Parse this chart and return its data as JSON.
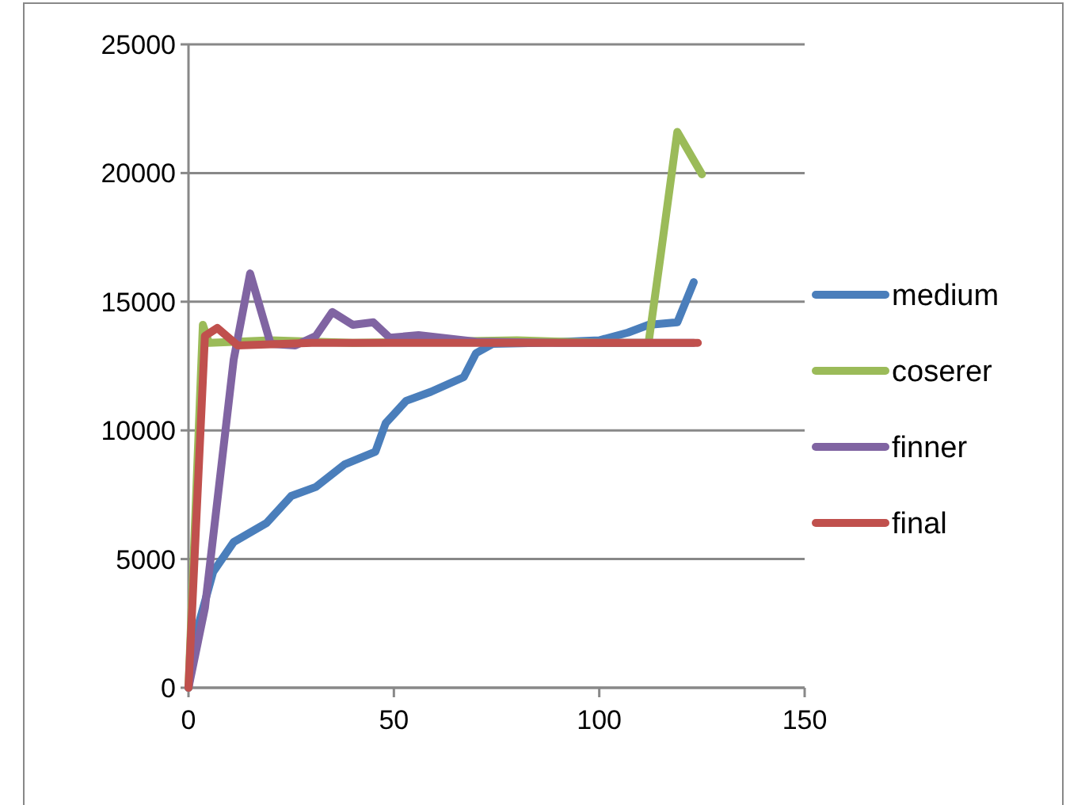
{
  "chart_data": {
    "type": "line",
    "xlim": [
      0,
      150
    ],
    "xticks": [
      0,
      50,
      100,
      150
    ],
    "ylim": [
      0,
      25000
    ],
    "yticks": [
      0,
      5000,
      10000,
      15000,
      20000,
      25000
    ],
    "grid": "y",
    "legend": "right",
    "marker": "none",
    "line_style": "solid",
    "series": [
      {
        "name": "medium",
        "color": "#4a7ebb",
        "x": [
          0,
          2,
          6,
          11,
          19,
          25,
          31,
          38,
          45.5,
          48,
          53,
          59,
          67,
          70,
          74,
          85,
          100,
          107,
          112,
          119,
          123
        ],
        "values": [
          0,
          2200,
          4500,
          5660,
          6400,
          7450,
          7800,
          8680,
          9170,
          10280,
          11150,
          11500,
          12070,
          13000,
          13360,
          13400,
          13500,
          13800,
          14100,
          14200,
          15760
        ]
      },
      {
        "name": "coserer",
        "color": "#9bbb59",
        "x": [
          0,
          3.5,
          5,
          20,
          40,
          60,
          80,
          100,
          112,
          115,
          119,
          125
        ],
        "values": [
          0,
          14100,
          13400,
          13500,
          13400,
          13450,
          13500,
          13400,
          13400,
          16870,
          21600,
          19950
        ]
      },
      {
        "name": "finner",
        "color": "#8064a2",
        "x": [
          0,
          4,
          11,
          15,
          20,
          26,
          31,
          35,
          40,
          45,
          49,
          56,
          70,
          90,
          110,
          123
        ],
        "values": [
          0,
          3100,
          12750,
          16100,
          13360,
          13300,
          13670,
          14600,
          14100,
          14200,
          13600,
          13700,
          13450,
          13400,
          13400,
          13400
        ]
      },
      {
        "name": "final",
        "color": "#c0504d",
        "x": [
          0,
          4,
          7,
          12,
          30,
          60,
          90,
          124
        ],
        "values": [
          0,
          13670,
          13980,
          13300,
          13400,
          13400,
          13400,
          13400
        ]
      }
    ]
  }
}
